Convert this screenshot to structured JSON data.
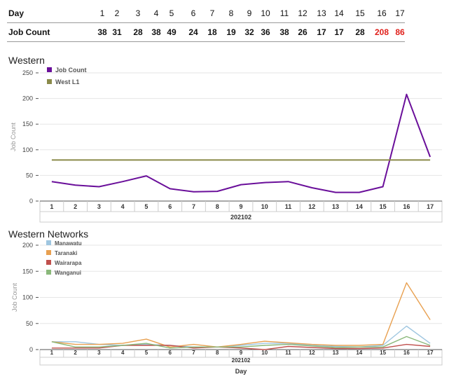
{
  "table": {
    "day_label": "Day",
    "count_label": "Job Count",
    "days": [
      "1",
      "2",
      "3",
      "4",
      "5",
      "6",
      "7",
      "8",
      "9",
      "10",
      "11",
      "12",
      "13",
      "14",
      "15",
      "16",
      "17"
    ],
    "counts": [
      "38",
      "31",
      "28",
      "38",
      "49",
      "24",
      "18",
      "19",
      "32",
      "36",
      "38",
      "26",
      "17",
      "17",
      "28",
      "208",
      "86"
    ],
    "highlight_color": "#e0201b"
  },
  "chart_data": [
    {
      "type": "line",
      "title": "Western",
      "ylabel": "Job Count",
      "xlabel": "",
      "group_label": "202102",
      "ylim": [
        0,
        250
      ],
      "yticks": [
        0,
        50,
        100,
        150,
        200,
        250
      ],
      "categories": [
        "1",
        "2",
        "3",
        "4",
        "5",
        "6",
        "7",
        "8",
        "9",
        "10",
        "11",
        "12",
        "13",
        "14",
        "15",
        "16",
        "17"
      ],
      "legend_position": "top-left",
      "grid": true,
      "series": [
        {
          "name": "Job Count",
          "color": "#6a0f9a",
          "values": [
            38,
            31,
            28,
            38,
            49,
            24,
            18,
            19,
            32,
            36,
            38,
            26,
            17,
            17,
            28,
            208,
            86
          ]
        },
        {
          "name": "West L1",
          "color": "#8a8a4a",
          "values": [
            80,
            80,
            80,
            80,
            80,
            80,
            80,
            80,
            80,
            80,
            80,
            80,
            80,
            80,
            80,
            80,
            80
          ]
        }
      ]
    },
    {
      "type": "line",
      "title": "Western Networks",
      "ylabel": "Job Count",
      "xlabel": "Day",
      "group_label": "202102",
      "ylim": [
        0,
        200
      ],
      "yticks": [
        0,
        50,
        100,
        150,
        200
      ],
      "categories": [
        "1",
        "2",
        "3",
        "4",
        "5",
        "6",
        "7",
        "8",
        "9",
        "10",
        "11",
        "12",
        "13",
        "14",
        "15",
        "16",
        "17"
      ],
      "legend_position": "top-left",
      "grid": true,
      "series": [
        {
          "name": "Manawatu",
          "color": "#9fc6e0",
          "values": [
            15,
            15,
            10,
            8,
            10,
            8,
            5,
            5,
            8,
            12,
            12,
            8,
            6,
            5,
            8,
            45,
            12
          ]
        },
        {
          "name": "Taranaki",
          "color": "#e8a050",
          "values": [
            15,
            10,
            10,
            12,
            20,
            5,
            10,
            5,
            10,
            16,
            13,
            10,
            8,
            8,
            10,
            128,
            57
          ]
        },
        {
          "name": "Wairarapa",
          "color": "#c0504d",
          "values": [
            3,
            3,
            3,
            8,
            8,
            8,
            3,
            5,
            3,
            0,
            6,
            4,
            2,
            2,
            3,
            10,
            6
          ]
        },
        {
          "name": "Wanganui",
          "color": "#8ab87a",
          "values": [
            15,
            5,
            5,
            8,
            12,
            3,
            5,
            5,
            5,
            8,
            10,
            7,
            4,
            5,
            5,
            25,
            8
          ]
        }
      ]
    }
  ]
}
